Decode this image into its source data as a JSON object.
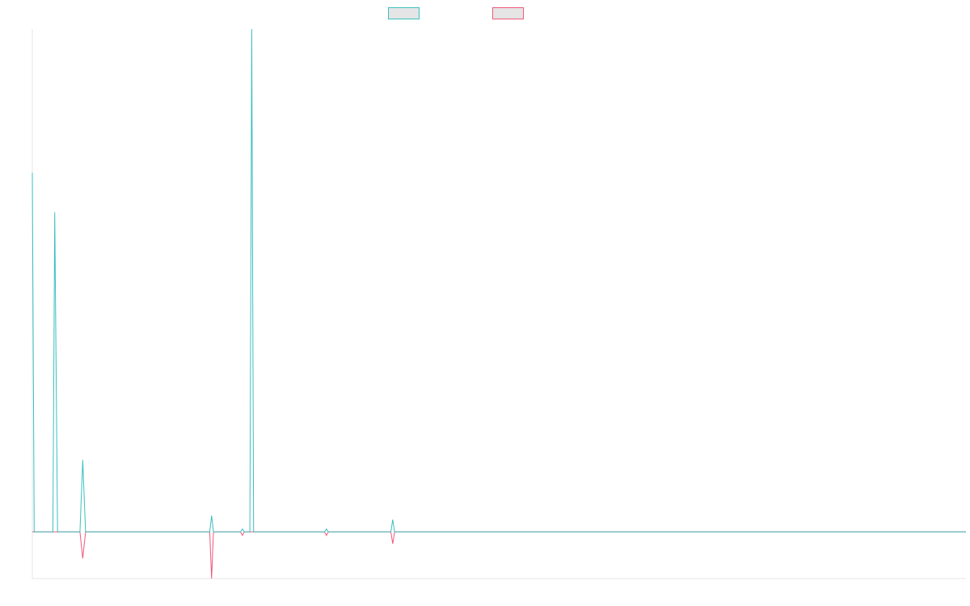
{
  "chart_data": {
    "type": "line",
    "title": "",
    "xlabel": "",
    "ylabel": "",
    "grid": false,
    "legend_position": "top-center",
    "xlim": [
      0,
      100
    ],
    "ylim": [
      -13,
      140
    ],
    "series": [
      {
        "color": "#3cbfc0",
        "points": [
          [
            0,
            100
          ],
          [
            0.2,
            0
          ],
          [
            2.2,
            0
          ],
          [
            2.4,
            89
          ],
          [
            2.7,
            0
          ],
          [
            5.1,
            0
          ],
          [
            5.4,
            20
          ],
          [
            5.7,
            0
          ],
          [
            19.0,
            0
          ],
          [
            19.2,
            4.5
          ],
          [
            19.4,
            0
          ],
          [
            22.3,
            0
          ],
          [
            22.5,
            0.8
          ],
          [
            22.7,
            0
          ],
          [
            23.3,
            0
          ],
          [
            23.5,
            140
          ],
          [
            23.7,
            0
          ],
          [
            24.1,
            0
          ],
          [
            31.3,
            0
          ],
          [
            31.5,
            0.8
          ],
          [
            31.7,
            0
          ],
          [
            38.4,
            0
          ],
          [
            38.6,
            3.4
          ],
          [
            38.8,
            0
          ],
          [
            100,
            0
          ]
        ]
      },
      {
        "color": "#f0597a",
        "points": [
          [
            0,
            0
          ],
          [
            5.1,
            0
          ],
          [
            5.4,
            -7.4
          ],
          [
            5.7,
            0
          ],
          [
            19.0,
            0
          ],
          [
            19.2,
            -13
          ],
          [
            19.4,
            0
          ],
          [
            22.3,
            0
          ],
          [
            22.5,
            -1
          ],
          [
            22.7,
            0
          ],
          [
            31.3,
            0
          ],
          [
            31.5,
            -1
          ],
          [
            31.7,
            0
          ],
          [
            38.4,
            0
          ],
          [
            38.6,
            -3.3
          ],
          [
            38.8,
            0
          ],
          [
            100,
            0
          ]
        ]
      }
    ]
  },
  "legend": {
    "items": [
      {
        "label": "",
        "color": "#3cbfc0"
      },
      {
        "label": "",
        "color": "#f0597a"
      }
    ]
  }
}
